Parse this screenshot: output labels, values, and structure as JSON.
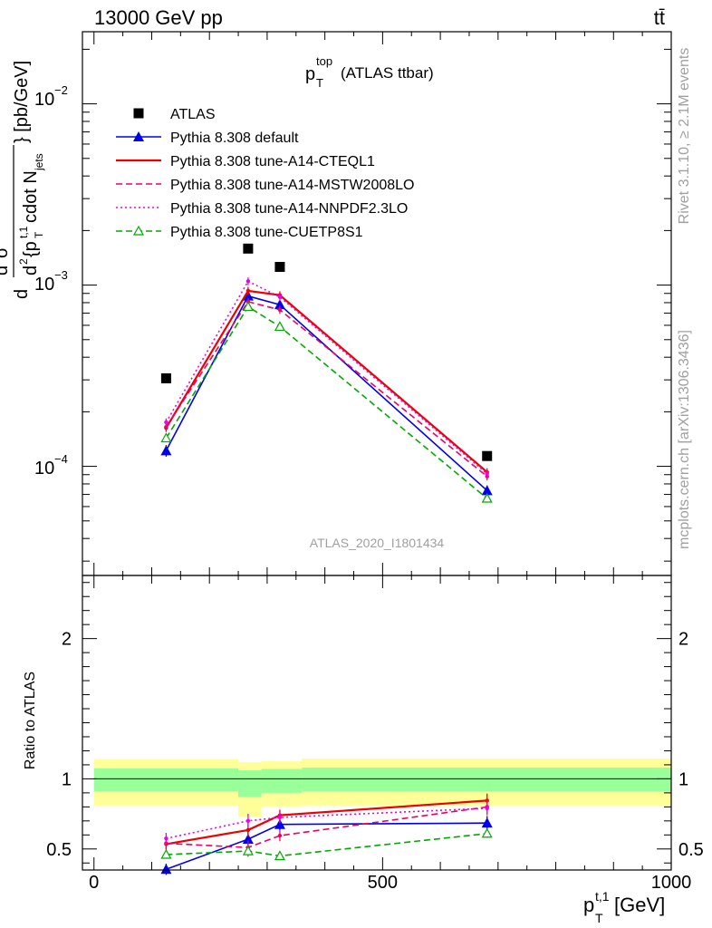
{
  "header": {
    "left": "13000 GeV pp",
    "right": "tt̄"
  },
  "side_labels": {
    "rivet": "Rivet 3.1.10, ≥ 2.1M events",
    "mcplots": "mcplots.cern.ch [arXiv:1306.3436]"
  },
  "watermark": "ATLAS_2020_I1801434",
  "chart_data": [
    {
      "type": "line",
      "panel": "main",
      "title": "p_T^top (ATLAS ttbar)",
      "ylabel": "d²σ^fid / d²{p_T^t,1 cdot N_jets} [pb/GeV]",
      "yscale": "log",
      "ylim": [
        2.5e-05,
        0.025
      ],
      "xlim": [
        -20,
        1000
      ],
      "y_tick_labels": [
        "10^-4",
        "10^-3",
        "10^-2"
      ],
      "legend_position": "top-left",
      "series": [
        {
          "name": "ATLAS",
          "style": "data",
          "color": "#000000",
          "x": [
            125,
            267,
            322,
            681
          ],
          "y": [
            0.000306,
            0.00159,
            0.00126,
            0.000114
          ]
        },
        {
          "name": "Pythia 8.308 default",
          "style": "solid-triangle",
          "color": "#0000ee",
          "x": [
            125,
            267,
            322,
            681
          ],
          "y": [
            0.000122,
            0.00087,
            0.00078,
            7.35e-05
          ],
          "yerr": [
            9e-06,
            4e-05,
            4e-05,
            5e-06
          ]
        },
        {
          "name": "Pythia 8.308 tune-A14-CTEQL1",
          "style": "solid",
          "color": "#ee0000",
          "x": [
            125,
            267,
            322,
            681
          ],
          "y": [
            0.000163,
            0.00093,
            0.00088,
            9.3e-05
          ]
        },
        {
          "name": "Pythia 8.308 tune-A14-MSTW2008LO",
          "style": "dashed",
          "color": "#ee0066",
          "x": [
            125,
            267,
            322,
            681
          ],
          "y": [
            0.000165,
            0.00081,
            0.00073,
            8.8e-05
          ]
        },
        {
          "name": "Pythia 8.308 tune-A14-NNPDF2.3LO",
          "style": "dotted",
          "color": "#ee00ee",
          "x": [
            125,
            267,
            322,
            681
          ],
          "y": [
            0.000175,
            0.00105,
            0.00086,
            9.1e-05
          ]
        },
        {
          "name": "Pythia 8.308 tune-CUETP8S1",
          "style": "dashed-open-triangle",
          "color": "#00aa00",
          "x": [
            125,
            267,
            322,
            681
          ],
          "y": [
            0.000143,
            0.00076,
            0.00059,
            6.65e-05
          ]
        }
      ]
    },
    {
      "type": "line",
      "panel": "ratio",
      "ylabel": "Ratio to ATLAS",
      "xlabel": "p_T^t,1 [GeV]",
      "ylim": [
        0.35,
        2.45
      ],
      "xlim": [
        -20,
        1000
      ],
      "x_ticks": [
        0,
        500,
        1000
      ],
      "y_ticks": [
        0.5,
        1,
        2
      ],
      "bands": {
        "yellow_color": "#ffff99",
        "green_color": "#99ff99",
        "bins": [
          {
            "x0": 0,
            "x1": 250,
            "y_lo": 0.81,
            "y_hi": 1.14,
            "g_lo": 0.91,
            "g_hi": 1.075
          },
          {
            "x0": 250,
            "x1": 290,
            "y_lo": 0.73,
            "y_hi": 1.12,
            "g_lo": 0.87,
            "g_hi": 1.06
          },
          {
            "x0": 290,
            "x1": 360,
            "y_lo": 0.8,
            "y_hi": 1.125,
            "g_lo": 0.9,
            "g_hi": 1.07
          },
          {
            "x0": 360,
            "x1": 1000,
            "y_lo": 0.81,
            "y_hi": 1.145,
            "g_lo": 0.91,
            "g_hi": 1.08
          }
        ]
      },
      "series": [
        {
          "name": "Pythia 8.308 default",
          "color": "#0000ee",
          "style": "solid-triangle",
          "x": [
            125,
            267,
            322,
            681
          ],
          "y": [
            0.355,
            0.57,
            0.675,
            0.685
          ],
          "yerr": [
            0.04,
            0.05,
            0.04,
            0.05
          ]
        },
        {
          "name": "Pythia 8.308 tune-A14-CTEQL1",
          "color": "#ee0000",
          "style": "solid",
          "x": [
            125,
            267,
            322,
            681
          ],
          "y": [
            0.535,
            0.635,
            0.74,
            0.845
          ],
          "yerr": [
            0.04,
            0.05,
            0.04,
            0.05
          ]
        },
        {
          "name": "Pythia 8.308 tune-A14-MSTW2008LO",
          "color": "#ee0066",
          "style": "dashed",
          "x": [
            125,
            267,
            322,
            681
          ],
          "y": [
            0.54,
            0.51,
            0.595,
            0.8
          ],
          "yerr": [
            0.04,
            0.05,
            0.04,
            0.05
          ]
        },
        {
          "name": "Pythia 8.308 tune-A14-NNPDF2.3LO",
          "color": "#ee00ee",
          "style": "dotted",
          "x": [
            125,
            267,
            322,
            681
          ],
          "y": [
            0.575,
            0.7,
            0.725,
            0.79
          ],
          "yerr": [
            0.04,
            0.05,
            0.04,
            0.05
          ]
        },
        {
          "name": "Pythia 8.308 tune-CUETP8S1",
          "color": "#00aa00",
          "style": "dashed-open-triangle",
          "x": [
            125,
            267,
            322,
            681
          ],
          "y": [
            0.46,
            0.485,
            0.45,
            0.61
          ],
          "yerr": [
            0.03,
            0.04,
            0.03,
            0.03
          ]
        }
      ]
    }
  ]
}
